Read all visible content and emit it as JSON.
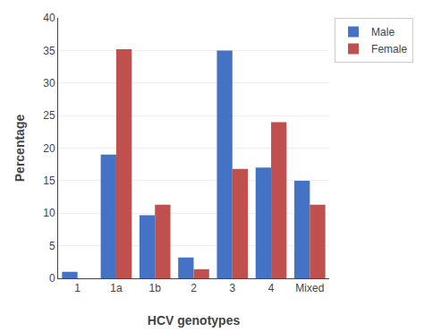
{
  "chart_data": {
    "type": "bar",
    "categories": [
      "1",
      "1a",
      "1b",
      "2",
      "3",
      "4",
      "Mixed"
    ],
    "series": [
      {
        "name": "Male",
        "color": "#4472C4",
        "values": [
          1,
          19,
          9.7,
          3.2,
          35,
          17,
          15
        ]
      },
      {
        "name": "Female",
        "color": "#C0504D",
        "values": [
          0,
          35.2,
          11.3,
          1.4,
          16.8,
          24,
          11.3
        ]
      }
    ],
    "xlabel": "HCV genotypes",
    "ylabel": "Percentage",
    "ylim": [
      0,
      40
    ],
    "yticks": [
      0,
      5,
      10,
      15,
      20,
      25,
      30,
      35,
      40
    ],
    "grid": true,
    "legend": "right"
  }
}
